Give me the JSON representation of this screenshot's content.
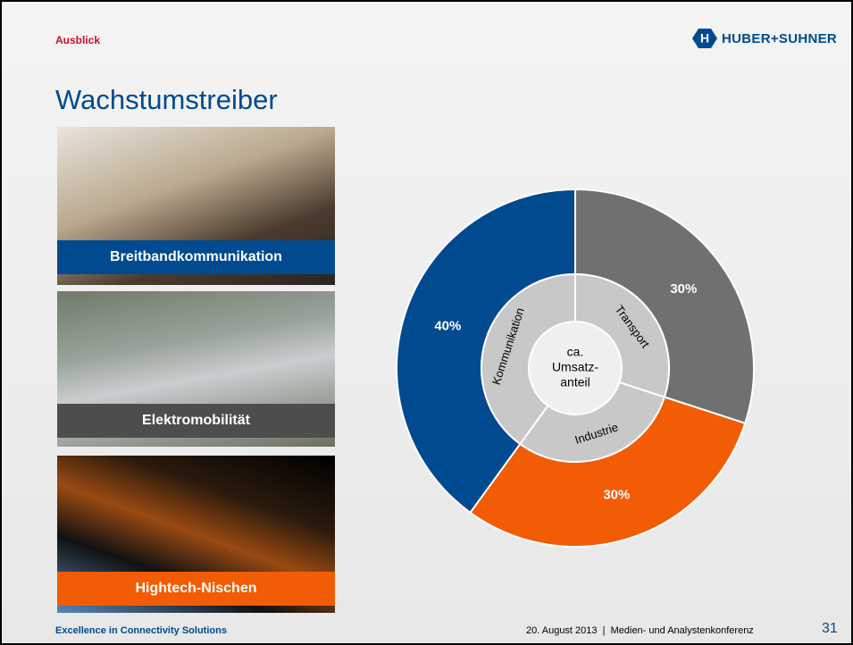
{
  "header": {
    "section": "Ausblick",
    "logo": "HUBER+SUHNER"
  },
  "title": "Wachstumstreiber",
  "panels": [
    {
      "label": "Breitbandkommunikation"
    },
    {
      "label": "Elektromobilität"
    },
    {
      "label": "Hightech-Nischen"
    }
  ],
  "chart_data": {
    "type": "donut",
    "categories": [
      "Transport",
      "Industrie",
      "Kommunikation"
    ],
    "values": [
      30,
      30,
      40
    ],
    "value_labels": [
      "30%",
      "30%",
      "40%"
    ],
    "colors": [
      "#707070",
      "#f25c05",
      "#004a8f"
    ],
    "center_label": [
      "ca.",
      "Umsatz-",
      "anteil"
    ]
  },
  "footer": {
    "tagline": "Excellence in Connectivity Solutions",
    "info": "20. August 2013  |  Medien- und Analystenkonferenz",
    "page": "31"
  }
}
